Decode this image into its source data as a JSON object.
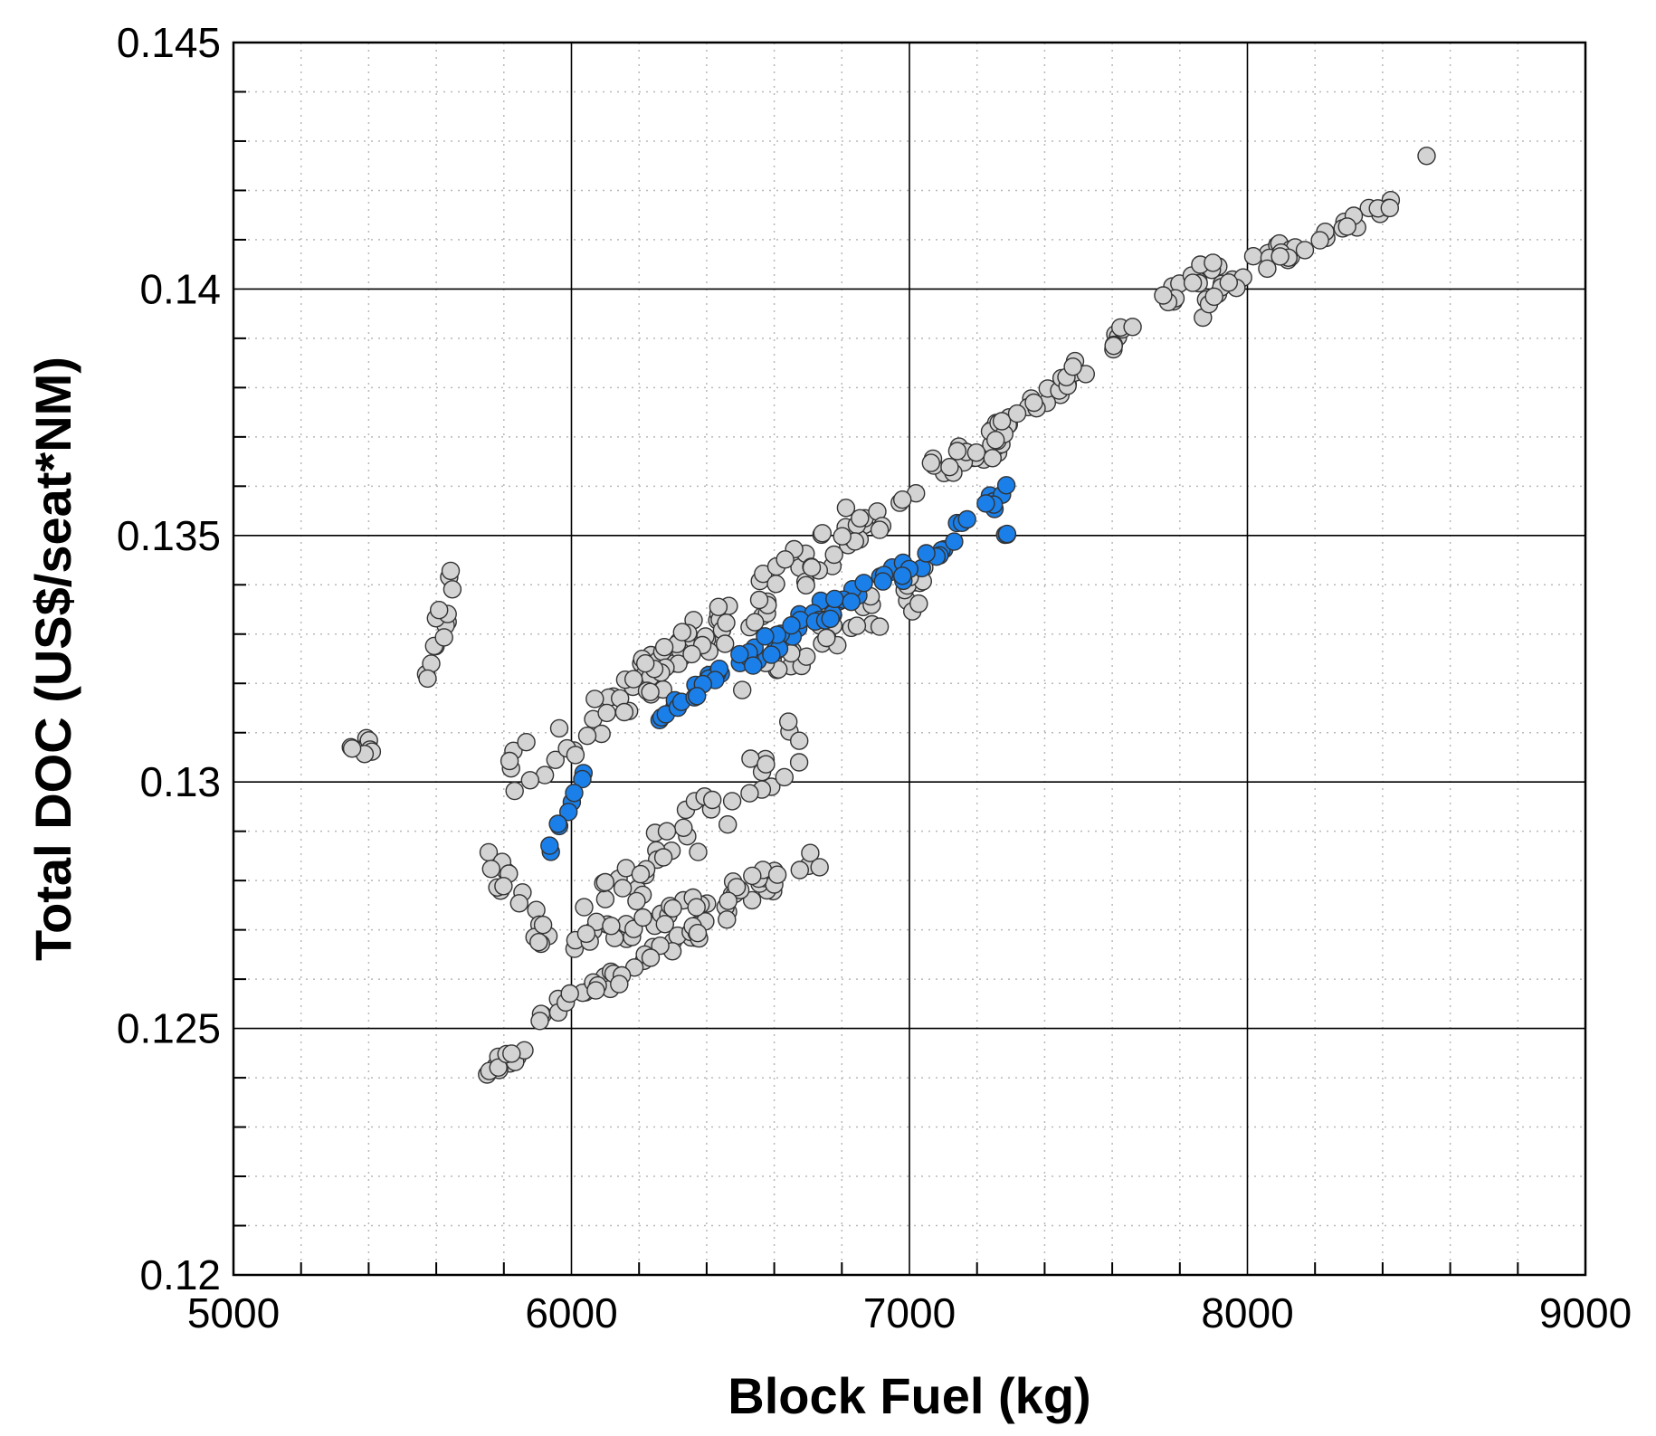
{
  "chart_data": {
    "type": "scatter",
    "title": "",
    "xlabel": "Block Fuel (kg)",
    "ylabel": "Total DOC (US$/seat*NM)",
    "xlim": [
      5000,
      9000
    ],
    "ylim": [
      0.12,
      0.145
    ],
    "x_ticks": [
      5000,
      6000,
      7000,
      8000,
      9000
    ],
    "x_tick_labels": [
      "5000",
      "6000",
      "7000",
      "8000",
      "9000"
    ],
    "y_ticks": [
      0.12,
      0.125,
      0.13,
      0.135,
      0.14,
      0.145
    ],
    "y_tick_labels": [
      "0.12",
      "0.125",
      "0.13",
      "0.135",
      "0.14",
      "0.145"
    ],
    "x_minor_step": 200,
    "y_minor_step": 0.001,
    "grid": true,
    "legend": "none",
    "colors": {
      "all_designs": "#d3d3d3",
      "selected_designs": "#1a7fe8",
      "marker_edge": "#333333"
    },
    "series": [
      {
        "color": "#d3d3d3",
        "clusters": [
          {
            "x": [
              5330,
              5430
            ],
            "y": [
              0.1305,
              0.1308
            ],
            "spread_y": 0.0004
          },
          {
            "x": [
              5560,
              5650
            ],
            "y": [
              0.132,
              0.134
            ],
            "spread_y": 0.0012
          },
          {
            "x": [
              5700,
              5900
            ],
            "y": [
              0.124,
              0.1247
            ],
            "spread_y": 0.0003
          },
          {
            "x": [
              5900,
              6600
            ],
            "y": [
              0.1252,
              0.1278
            ],
            "spread_y": 0.0004
          },
          {
            "x": [
              6100,
              6750
            ],
            "y": [
              0.1268,
              0.1285
            ],
            "spread_y": 0.0004
          },
          {
            "x": [
              5750,
              5950
            ],
            "y": [
              0.1285,
              0.1265
            ],
            "spread_y": 0.0008
          },
          {
            "x": [
              5800,
              6450
            ],
            "y": [
              0.13,
              0.1332
            ],
            "spread_y": 0.001
          },
          {
            "x": [
              6000,
              6700
            ],
            "y": [
              0.127,
              0.131
            ],
            "spread_y": 0.0012
          },
          {
            "x": [
              6100,
              6900
            ],
            "y": [
              0.1315,
              0.1355
            ],
            "spread_y": 0.001
          },
          {
            "x": [
              6500,
              7050
            ],
            "y": [
              0.132,
              0.134
            ],
            "spread_y": 0.0008
          },
          {
            "x": [
              6800,
              7300
            ],
            "y": [
              0.135,
              0.1372
            ],
            "spread_y": 0.0008
          },
          {
            "x": [
              7250,
              7650
            ],
            "y": [
              0.137,
              0.1392
            ],
            "spread_y": 0.0005
          },
          {
            "x": [
              7600,
              7950
            ],
            "y": [
              0.139,
              0.1408
            ],
            "spread_y": 0.0004
          },
          {
            "x": [
              7850,
              8100
            ],
            "y": [
              0.1395,
              0.141
            ],
            "spread_y": 0.0004
          },
          {
            "x": [
              8050,
              8450
            ],
            "y": [
              0.1405,
              0.1418
            ],
            "spread_y": 0.0003
          },
          {
            "x": [
              8530,
              8530
            ],
            "y": [
              0.1427,
              0.1427
            ],
            "spread_y": 0.0
          }
        ]
      },
      {
        "color": "#1a7fe8",
        "clusters": [
          {
            "x": [
              5930,
              6050
            ],
            "y": [
              0.1285,
              0.1305
            ],
            "spread_y": 0.0003
          },
          {
            "x": [
              6250,
              6450
            ],
            "y": [
              0.1312,
              0.1322
            ],
            "spread_y": 0.0004
          },
          {
            "x": [
              6350,
              6750
            ],
            "y": [
              0.1318,
              0.1335
            ],
            "spread_y": 0.0005
          },
          {
            "x": [
              6650,
              7000
            ],
            "y": [
              0.133,
              0.1345
            ],
            "spread_y": 0.0004
          },
          {
            "x": [
              6950,
              7300
            ],
            "y": [
              0.134,
              0.136
            ],
            "spread_y": 0.0004
          },
          {
            "x": [
              7280,
              7320
            ],
            "y": [
              0.135,
              0.1352
            ],
            "spread_y": 0.0001
          }
        ]
      }
    ]
  }
}
